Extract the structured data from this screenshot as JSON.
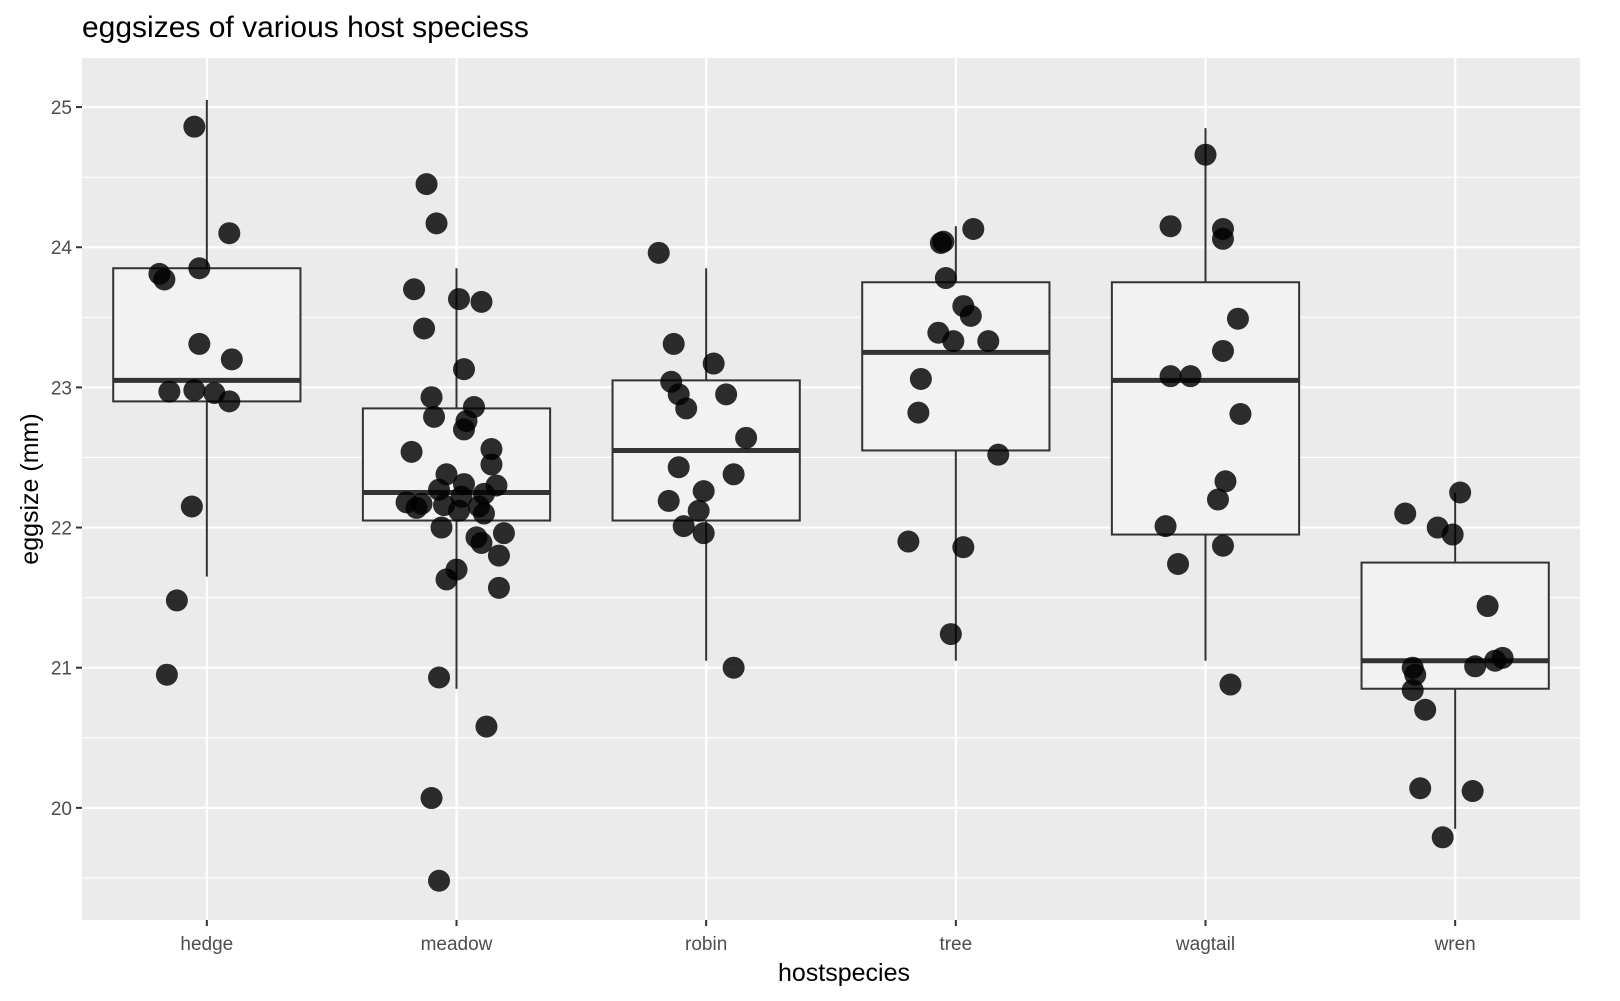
{
  "chart_data": {
    "type": "boxplot",
    "title": "eggsizes of various host speciess",
    "xlabel": "hostspecies",
    "ylabel": "eggsize (mm)",
    "categories": [
      "hedge",
      "meadow",
      "robin",
      "tree",
      "wagtail",
      "wren"
    ],
    "ylim": [
      19.2,
      25.35
    ],
    "yticks": [
      20,
      21,
      22,
      23,
      24,
      25
    ],
    "grid": true,
    "legend": "none",
    "colors": {
      "panel_bg": "#ebebeb",
      "grid": "#ffffff",
      "box_fill": "#f2f2f2",
      "box_stroke": "#333333",
      "points": "#000000",
      "tick_text": "#4d4d4d"
    },
    "boxes": [
      {
        "category": "hedge",
        "min": 21.65,
        "q1": 22.9,
        "median": 23.05,
        "q3": 23.85,
        "max": 25.05
      },
      {
        "category": "meadow",
        "min": 20.85,
        "q1": 22.05,
        "median": 22.25,
        "q3": 22.85,
        "max": 23.85
      },
      {
        "category": "robin",
        "min": 21.05,
        "q1": 22.05,
        "median": 22.55,
        "q3": 23.05,
        "max": 23.85
      },
      {
        "category": "tree",
        "min": 21.05,
        "q1": 22.55,
        "median": 23.25,
        "q3": 23.75,
        "max": 24.15
      },
      {
        "category": "wagtail",
        "min": 21.05,
        "q1": 21.95,
        "median": 23.05,
        "q3": 23.75,
        "max": 24.85
      },
      {
        "category": "wren",
        "min": 19.85,
        "q1": 20.85,
        "median": 21.05,
        "q3": 21.75,
        "max": 22.25
      }
    ],
    "points": [
      {
        "category": "hedge",
        "y": 24.86,
        "jitter": -0.05
      },
      {
        "category": "hedge",
        "y": 24.1,
        "jitter": 0.09
      },
      {
        "category": "hedge",
        "y": 23.85,
        "jitter": -0.03
      },
      {
        "category": "hedge",
        "y": 23.81,
        "jitter": -0.19
      },
      {
        "category": "hedge",
        "y": 23.77,
        "jitter": -0.17
      },
      {
        "category": "hedge",
        "y": 23.31,
        "jitter": -0.03
      },
      {
        "category": "hedge",
        "y": 23.2,
        "jitter": 0.1
      },
      {
        "category": "hedge",
        "y": 22.97,
        "jitter": -0.15
      },
      {
        "category": "hedge",
        "y": 22.98,
        "jitter": -0.05
      },
      {
        "category": "hedge",
        "y": 22.96,
        "jitter": 0.03
      },
      {
        "category": "hedge",
        "y": 22.9,
        "jitter": 0.09
      },
      {
        "category": "hedge",
        "y": 22.15,
        "jitter": -0.06
      },
      {
        "category": "hedge",
        "y": 21.48,
        "jitter": -0.12
      },
      {
        "category": "hedge",
        "y": 20.95,
        "jitter": -0.16
      },
      {
        "category": "meadow",
        "y": 24.45,
        "jitter": -0.12
      },
      {
        "category": "meadow",
        "y": 24.17,
        "jitter": -0.08
      },
      {
        "category": "meadow",
        "y": 23.7,
        "jitter": -0.17
      },
      {
        "category": "meadow",
        "y": 23.63,
        "jitter": 0.01
      },
      {
        "category": "meadow",
        "y": 23.61,
        "jitter": 0.1
      },
      {
        "category": "meadow",
        "y": 23.42,
        "jitter": -0.13
      },
      {
        "category": "meadow",
        "y": 23.13,
        "jitter": 0.03
      },
      {
        "category": "meadow",
        "y": 22.93,
        "jitter": -0.1
      },
      {
        "category": "meadow",
        "y": 22.86,
        "jitter": 0.07
      },
      {
        "category": "meadow",
        "y": 22.79,
        "jitter": -0.09
      },
      {
        "category": "meadow",
        "y": 22.76,
        "jitter": 0.04
      },
      {
        "category": "meadow",
        "y": 22.7,
        "jitter": 0.03
      },
      {
        "category": "meadow",
        "y": 22.56,
        "jitter": 0.14
      },
      {
        "category": "meadow",
        "y": 22.54,
        "jitter": -0.18
      },
      {
        "category": "meadow",
        "y": 22.45,
        "jitter": 0.14
      },
      {
        "category": "meadow",
        "y": 22.38,
        "jitter": -0.04
      },
      {
        "category": "meadow",
        "y": 22.31,
        "jitter": 0.03
      },
      {
        "category": "meadow",
        "y": 22.3,
        "jitter": 0.16
      },
      {
        "category": "meadow",
        "y": 22.27,
        "jitter": -0.07
      },
      {
        "category": "meadow",
        "y": 22.24,
        "jitter": 0.11
      },
      {
        "category": "meadow",
        "y": 22.22,
        "jitter": 0.02
      },
      {
        "category": "meadow",
        "y": 22.18,
        "jitter": -0.2
      },
      {
        "category": "meadow",
        "y": 22.17,
        "jitter": -0.14
      },
      {
        "category": "meadow",
        "y": 22.16,
        "jitter": -0.05
      },
      {
        "category": "meadow",
        "y": 22.15,
        "jitter": 0.09
      },
      {
        "category": "meadow",
        "y": 22.14,
        "jitter": -0.16
      },
      {
        "category": "meadow",
        "y": 22.12,
        "jitter": 0.01
      },
      {
        "category": "meadow",
        "y": 22.1,
        "jitter": 0.11
      },
      {
        "category": "meadow",
        "y": 22.0,
        "jitter": -0.06
      },
      {
        "category": "meadow",
        "y": 21.96,
        "jitter": 0.19
      },
      {
        "category": "meadow",
        "y": 21.93,
        "jitter": 0.08
      },
      {
        "category": "meadow",
        "y": 21.89,
        "jitter": 0.1
      },
      {
        "category": "meadow",
        "y": 21.8,
        "jitter": 0.17
      },
      {
        "category": "meadow",
        "y": 21.7,
        "jitter": 0.0
      },
      {
        "category": "meadow",
        "y": 21.63,
        "jitter": -0.04
      },
      {
        "category": "meadow",
        "y": 21.57,
        "jitter": 0.17
      },
      {
        "category": "meadow",
        "y": 20.93,
        "jitter": -0.07
      },
      {
        "category": "meadow",
        "y": 20.58,
        "jitter": 0.12
      },
      {
        "category": "meadow",
        "y": 20.07,
        "jitter": -0.1
      },
      {
        "category": "meadow",
        "y": 19.48,
        "jitter": -0.07
      },
      {
        "category": "robin",
        "y": 23.96,
        "jitter": -0.19
      },
      {
        "category": "robin",
        "y": 23.31,
        "jitter": -0.13
      },
      {
        "category": "robin",
        "y": 23.17,
        "jitter": 0.03
      },
      {
        "category": "robin",
        "y": 23.04,
        "jitter": -0.14
      },
      {
        "category": "robin",
        "y": 22.95,
        "jitter": -0.11
      },
      {
        "category": "robin",
        "y": 22.95,
        "jitter": 0.08
      },
      {
        "category": "robin",
        "y": 22.85,
        "jitter": -0.08
      },
      {
        "category": "robin",
        "y": 22.64,
        "jitter": 0.16
      },
      {
        "category": "robin",
        "y": 22.43,
        "jitter": -0.11
      },
      {
        "category": "robin",
        "y": 22.38,
        "jitter": 0.11
      },
      {
        "category": "robin",
        "y": 22.26,
        "jitter": -0.01
      },
      {
        "category": "robin",
        "y": 22.19,
        "jitter": -0.15
      },
      {
        "category": "robin",
        "y": 22.12,
        "jitter": -0.03
      },
      {
        "category": "robin",
        "y": 22.01,
        "jitter": -0.09
      },
      {
        "category": "robin",
        "y": 21.96,
        "jitter": -0.01
      },
      {
        "category": "robin",
        "y": 21.0,
        "jitter": 0.11
      },
      {
        "category": "tree",
        "y": 24.13,
        "jitter": 0.07
      },
      {
        "category": "tree",
        "y": 24.04,
        "jitter": -0.05
      },
      {
        "category": "tree",
        "y": 24.03,
        "jitter": -0.06
      },
      {
        "category": "tree",
        "y": 23.78,
        "jitter": -0.04
      },
      {
        "category": "tree",
        "y": 23.58,
        "jitter": 0.03
      },
      {
        "category": "tree",
        "y": 23.51,
        "jitter": 0.06
      },
      {
        "category": "tree",
        "y": 23.39,
        "jitter": -0.07
      },
      {
        "category": "tree",
        "y": 23.33,
        "jitter": -0.01
      },
      {
        "category": "tree",
        "y": 23.33,
        "jitter": 0.13
      },
      {
        "category": "tree",
        "y": 23.06,
        "jitter": -0.14
      },
      {
        "category": "tree",
        "y": 22.82,
        "jitter": -0.15
      },
      {
        "category": "tree",
        "y": 22.52,
        "jitter": 0.17
      },
      {
        "category": "tree",
        "y": 21.9,
        "jitter": -0.19
      },
      {
        "category": "tree",
        "y": 21.86,
        "jitter": 0.03
      },
      {
        "category": "tree",
        "y": 21.24,
        "jitter": -0.02
      },
      {
        "category": "wagtail",
        "y": 24.66,
        "jitter": 0.0
      },
      {
        "category": "wagtail",
        "y": 24.15,
        "jitter": -0.14
      },
      {
        "category": "wagtail",
        "y": 24.13,
        "jitter": 0.07
      },
      {
        "category": "wagtail",
        "y": 24.06,
        "jitter": 0.07
      },
      {
        "category": "wagtail",
        "y": 23.49,
        "jitter": 0.13
      },
      {
        "category": "wagtail",
        "y": 23.26,
        "jitter": 0.07
      },
      {
        "category": "wagtail",
        "y": 23.08,
        "jitter": -0.14
      },
      {
        "category": "wagtail",
        "y": 23.08,
        "jitter": -0.06
      },
      {
        "category": "wagtail",
        "y": 22.81,
        "jitter": 0.14
      },
      {
        "category": "wagtail",
        "y": 22.33,
        "jitter": 0.08
      },
      {
        "category": "wagtail",
        "y": 22.2,
        "jitter": 0.05
      },
      {
        "category": "wagtail",
        "y": 22.01,
        "jitter": -0.16
      },
      {
        "category": "wagtail",
        "y": 21.87,
        "jitter": 0.07
      },
      {
        "category": "wagtail",
        "y": 21.74,
        "jitter": -0.11
      },
      {
        "category": "wagtail",
        "y": 20.88,
        "jitter": 0.1
      },
      {
        "category": "wren",
        "y": 22.25,
        "jitter": 0.02
      },
      {
        "category": "wren",
        "y": 22.1,
        "jitter": -0.2
      },
      {
        "category": "wren",
        "y": 22.0,
        "jitter": -0.07
      },
      {
        "category": "wren",
        "y": 21.95,
        "jitter": -0.01
      },
      {
        "category": "wren",
        "y": 21.44,
        "jitter": 0.13
      },
      {
        "category": "wren",
        "y": 21.07,
        "jitter": 0.19
      },
      {
        "category": "wren",
        "y": 21.05,
        "jitter": 0.16
      },
      {
        "category": "wren",
        "y": 21.01,
        "jitter": 0.08
      },
      {
        "category": "wren",
        "y": 21.0,
        "jitter": -0.17
      },
      {
        "category": "wren",
        "y": 20.95,
        "jitter": -0.16
      },
      {
        "category": "wren",
        "y": 20.84,
        "jitter": -0.17
      },
      {
        "category": "wren",
        "y": 20.7,
        "jitter": -0.12
      },
      {
        "category": "wren",
        "y": 20.14,
        "jitter": -0.14
      },
      {
        "category": "wren",
        "y": 20.12,
        "jitter": 0.07
      },
      {
        "category": "wren",
        "y": 19.79,
        "jitter": -0.05
      }
    ]
  }
}
